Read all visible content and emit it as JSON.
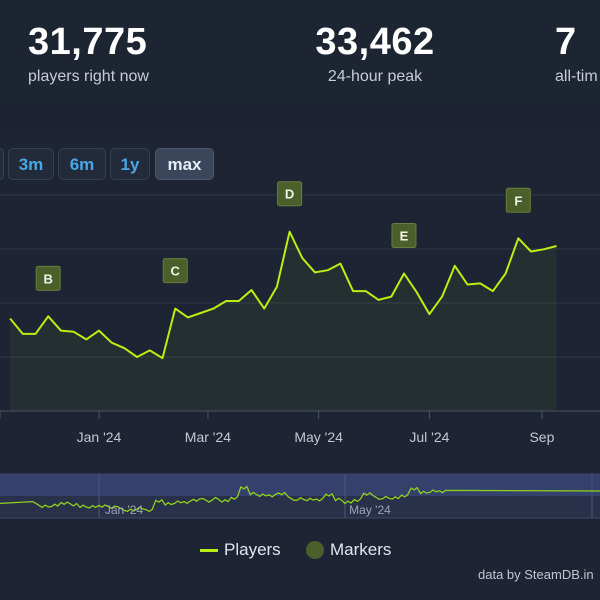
{
  "stats": {
    "now": {
      "value": "31,775",
      "label": "players right now"
    },
    "peak": {
      "value": "33,462",
      "label": "24-hour peak"
    },
    "alltime": {
      "value": "7",
      "label": "all-tim"
    }
  },
  "range_buttons": [
    {
      "label": "3m",
      "active": false
    },
    {
      "label": "6m",
      "active": false
    },
    {
      "label": "1y",
      "active": false
    },
    {
      "label": "max",
      "active": true
    }
  ],
  "chart_data": {
    "type": "line",
    "x_tick_labels": [
      "Jan '24",
      "Mar '24",
      "May '24",
      "Jul '24",
      "Sep"
    ],
    "navigator_labels": [
      "Jan '24",
      "May '24"
    ],
    "series": [
      {
        "name": "Players",
        "color": "#b9ef13",
        "points": [
          [
            "2023-11-13",
            23500
          ],
          [
            "2023-11-20",
            22100
          ],
          [
            "2023-11-27",
            22100
          ],
          [
            "2023-12-04",
            23700
          ],
          [
            "2023-12-11",
            22400
          ],
          [
            "2023-12-18",
            22300
          ],
          [
            "2023-12-25",
            21600
          ],
          [
            "2024-01-01",
            22400
          ],
          [
            "2024-01-08",
            21300
          ],
          [
            "2024-01-15",
            20800
          ],
          [
            "2024-01-22",
            20000
          ],
          [
            "2024-01-29",
            20600
          ],
          [
            "2024-02-05",
            19900
          ],
          [
            "2024-02-12",
            24400
          ],
          [
            "2024-02-19",
            23600
          ],
          [
            "2024-02-26",
            24000
          ],
          [
            "2024-03-04",
            24400
          ],
          [
            "2024-03-11",
            25100
          ],
          [
            "2024-03-18",
            25100
          ],
          [
            "2024-03-25",
            26100
          ],
          [
            "2024-04-01",
            24400
          ],
          [
            "2024-04-08",
            26400
          ],
          [
            "2024-04-15",
            31400
          ],
          [
            "2024-04-22",
            29000
          ],
          [
            "2024-04-29",
            27700
          ],
          [
            "2024-05-06",
            27900
          ],
          [
            "2024-05-13",
            28500
          ],
          [
            "2024-05-20",
            26000
          ],
          [
            "2024-05-27",
            26000
          ],
          [
            "2024-06-03",
            25200
          ],
          [
            "2024-06-10",
            25500
          ],
          [
            "2024-06-17",
            27600
          ],
          [
            "2024-06-24",
            25900
          ],
          [
            "2024-07-01",
            23900
          ],
          [
            "2024-07-08",
            25500
          ],
          [
            "2024-07-15",
            28300
          ],
          [
            "2024-07-22",
            26600
          ],
          [
            "2024-07-29",
            26700
          ],
          [
            "2024-08-05",
            26000
          ],
          [
            "2024-08-12",
            27600
          ],
          [
            "2024-08-19",
            30800
          ],
          [
            "2024-08-26",
            29600
          ],
          [
            "2024-09-02",
            29800
          ],
          [
            "2024-09-09",
            30100
          ]
        ]
      }
    ],
    "markers": [
      {
        "label": "B",
        "x": "2023-12-04",
        "y": 23700
      },
      {
        "label": "C",
        "x": "2024-02-12",
        "y": 24400
      },
      {
        "label": "D",
        "x": "2024-04-15",
        "y": 31400
      },
      {
        "label": "E",
        "x": "2024-06-17",
        "y": 27600
      },
      {
        "label": "F",
        "x": "2024-08-19",
        "y": 30800
      }
    ],
    "grid": true,
    "legend_position": "bottom"
  },
  "legend": {
    "players": "Players",
    "markers": "Markers"
  },
  "colors": {
    "line": "#b9ef13",
    "marker": "#4b5f2a",
    "accent": "#49a6e6"
  },
  "credit": "data by SteamDB.in"
}
